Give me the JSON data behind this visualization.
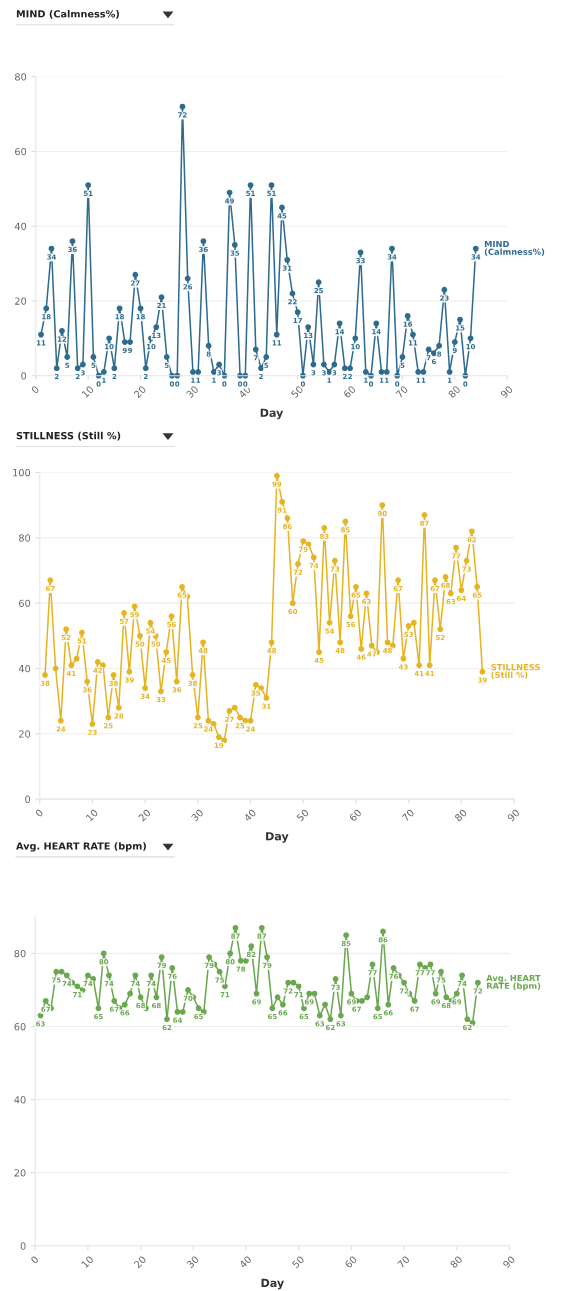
{
  "chart_data": [
    {
      "type": "line",
      "title": "MIND (Calmness%)",
      "xlabel": "Day",
      "marker": "circle",
      "grid": "y",
      "data_labels": true,
      "x": [
        1,
        2,
        3,
        4,
        5,
        6,
        7,
        8,
        9,
        10,
        11,
        12,
        13,
        14,
        15,
        16,
        17,
        18,
        19,
        20,
        21,
        22,
        23,
        24,
        25,
        26,
        27,
        28,
        29,
        30,
        31,
        32,
        33,
        34,
        35,
        36,
        37,
        38,
        39,
        40,
        41,
        42,
        43,
        44,
        45,
        46,
        47,
        48,
        49,
        50,
        51,
        52,
        53,
        54,
        55,
        56,
        57,
        58,
        59,
        60,
        61,
        62,
        63,
        64,
        65,
        66,
        67,
        68,
        69,
        70,
        71,
        72,
        73,
        74,
        75,
        76,
        77,
        78,
        79,
        80,
        81,
        82,
        83,
        84
      ],
      "series": [
        {
          "name": "MIND\n(Calmness%)",
          "color": "#2e6b8f",
          "values": [
            11,
            18,
            34,
            2,
            12,
            5,
            36,
            2,
            3,
            51,
            5,
            0,
            1,
            10,
            2,
            18,
            9,
            9,
            27,
            18,
            2,
            10,
            13,
            21,
            5,
            0,
            0,
            72,
            26,
            1,
            1,
            36,
            8,
            1,
            3,
            0,
            49,
            35,
            0,
            0,
            51,
            7,
            2,
            5,
            51,
            11,
            45,
            31,
            22,
            17,
            0,
            13,
            3,
            25,
            3,
            1,
            3,
            14,
            2,
            2,
            10,
            33,
            1,
            0,
            14,
            1,
            1,
            34,
            0,
            5,
            16,
            11,
            1,
            1,
            7,
            6,
            8,
            23,
            1,
            9,
            15,
            0,
            10,
            34
          ]
        }
      ],
      "xlim": [
        0,
        90
      ],
      "xticks": [
        0,
        10,
        20,
        30,
        40,
        50,
        60,
        70,
        80,
        90
      ],
      "ylim": [
        0,
        80
      ],
      "yticks": [
        0,
        20,
        40,
        60,
        80
      ]
    },
    {
      "type": "line",
      "title": "STILLNESS (Still %)",
      "xlabel": "Day",
      "marker": "circle",
      "grid": "y",
      "x": [
        1,
        2,
        3,
        4,
        5,
        6,
        7,
        8,
        9,
        10,
        11,
        12,
        13,
        14,
        15,
        16,
        17,
        18,
        19,
        20,
        21,
        22,
        23,
        24,
        25,
        26,
        27,
        28,
        29,
        30,
        31,
        32,
        33,
        34,
        35,
        36,
        37,
        38,
        39,
        40,
        41,
        42,
        43,
        44,
        45,
        46,
        47,
        48,
        49,
        50,
        51,
        52,
        53,
        54,
        55,
        56,
        57,
        58,
        59,
        60,
        61,
        62,
        63,
        64,
        65,
        66,
        67,
        68,
        69,
        70,
        71,
        72,
        73,
        74,
        75,
        76,
        77,
        78,
        79,
        80,
        81,
        82,
        83,
        84
      ],
      "series": [
        {
          "name": "STILLNESS\n(Still %)",
          "color": "#e6b422",
          "values": [
            38,
            67,
            40,
            24,
            52,
            41,
            43,
            51,
            36,
            23,
            42,
            41,
            25,
            38,
            28,
            57,
            39,
            59,
            50,
            34,
            54,
            50,
            33,
            45,
            56,
            36,
            65,
            62,
            38,
            25,
            48,
            24,
            23,
            19,
            18,
            27,
            28,
            25,
            24,
            24,
            35,
            34,
            31,
            48,
            99,
            91,
            86,
            60,
            72,
            79,
            78,
            74,
            45,
            83,
            54,
            73,
            48,
            85,
            56,
            65,
            46,
            63,
            47,
            45,
            90,
            48,
            47,
            67,
            43,
            53,
            54,
            41,
            87,
            41,
            67,
            52,
            68,
            63,
            77,
            64,
            73,
            82,
            65,
            39
          ],
          "value_labels": [
            "38",
            "67",
            null,
            "24",
            "52",
            "41",
            null,
            "51",
            "36",
            "23",
            "42",
            null,
            "25",
            "38",
            "28",
            "57",
            "39",
            "59",
            "50",
            "34",
            "54",
            "50",
            "33",
            "45",
            "56",
            "36",
            "65",
            null,
            "38",
            "25",
            "48",
            "24",
            null,
            "19",
            null,
            "27",
            null,
            "25",
            null,
            "24",
            "35",
            null,
            "31",
            "48",
            "99",
            "91",
            "86",
            "60",
            "72",
            "79",
            null,
            "74",
            "45",
            "83",
            "54",
            "73",
            "48",
            "85",
            "56",
            "65",
            "46",
            "63",
            "47",
            null,
            "90",
            "48",
            null,
            "67",
            "43",
            "53",
            null,
            "41",
            "87",
            "41",
            "67",
            "52",
            "68",
            "63",
            "77",
            "64",
            "73",
            "82",
            "65",
            "39"
          ]
        }
      ],
      "xlim": [
        0,
        90
      ],
      "xticks": [
        0,
        10,
        20,
        30,
        40,
        50,
        60,
        70,
        80,
        90
      ],
      "ylim": [
        0,
        100
      ],
      "yticks": [
        0,
        20,
        40,
        60,
        80,
        100
      ]
    },
    {
      "type": "line",
      "title": "Avg. HEART RATE (bpm)",
      "xlabel": "Day",
      "marker": "circle",
      "grid": "y",
      "x": [
        1,
        2,
        3,
        4,
        5,
        6,
        7,
        8,
        9,
        10,
        11,
        12,
        13,
        14,
        15,
        16,
        17,
        18,
        19,
        20,
        21,
        22,
        23,
        24,
        25,
        26,
        27,
        28,
        29,
        30,
        31,
        32,
        33,
        34,
        35,
        36,
        37,
        38,
        39,
        40,
        41,
        42,
        43,
        44,
        45,
        46,
        47,
        48,
        49,
        50,
        51,
        52,
        53,
        54,
        55,
        56,
        57,
        58,
        59,
        60,
        61,
        62,
        63,
        64,
        65,
        66,
        67,
        68,
        69,
        70,
        71,
        72,
        73,
        74,
        75,
        76,
        77,
        78,
        79,
        80,
        81,
        82,
        83,
        84
      ],
      "series": [
        {
          "name": "Avg. HEART\nRATE (bpm)",
          "color": "#6aa84f",
          "values": [
            63,
            67,
            65,
            75,
            75,
            74,
            72,
            71,
            70,
            74,
            73,
            65,
            80,
            74,
            67,
            65,
            66,
            69,
            74,
            68,
            65,
            74,
            68,
            79,
            62,
            76,
            64,
            64,
            70,
            68,
            65,
            64,
            79,
            77,
            75,
            71,
            80,
            87,
            78,
            78,
            82,
            69,
            87,
            79,
            65,
            68,
            66,
            72,
            72,
            71,
            65,
            69,
            69,
            63,
            66,
            62,
            73,
            63,
            85,
            69,
            67,
            67,
            68,
            77,
            65,
            86,
            66,
            76,
            74,
            72,
            69,
            67,
            77,
            76,
            77,
            69,
            75,
            68,
            67,
            69,
            74,
            62,
            61,
            72
          ],
          "value_labels": [
            "63",
            "67",
            null,
            "75",
            null,
            "74",
            null,
            "71",
            null,
            "74",
            null,
            "65",
            "80",
            "74",
            "67",
            null,
            "66",
            null,
            "74",
            "68",
            null,
            "74",
            "68",
            "79",
            "62",
            "76",
            "64",
            null,
            "70",
            null,
            "65",
            null,
            "79",
            null,
            "75",
            "71",
            "80",
            "87",
            "78",
            null,
            "82",
            "69",
            "87",
            "79",
            "65",
            null,
            "66",
            "72",
            null,
            "71",
            "65",
            "69",
            null,
            "63",
            null,
            "62",
            "73",
            "63",
            "85",
            "69",
            "67",
            null,
            null,
            "77",
            "65",
            "86",
            "66",
            "76",
            null,
            "72",
            null,
            "67",
            "77",
            null,
            "77",
            "69",
            "75",
            "68",
            null,
            "69",
            "74",
            "62",
            null,
            "72"
          ]
        }
      ],
      "xlim": [
        0,
        90
      ],
      "xticks": [
        0,
        10,
        20,
        30,
        40,
        50,
        60,
        70,
        80,
        90
      ],
      "ylim": [
        0,
        90
      ],
      "yticks": [
        0,
        20,
        40,
        60,
        80
      ]
    }
  ]
}
